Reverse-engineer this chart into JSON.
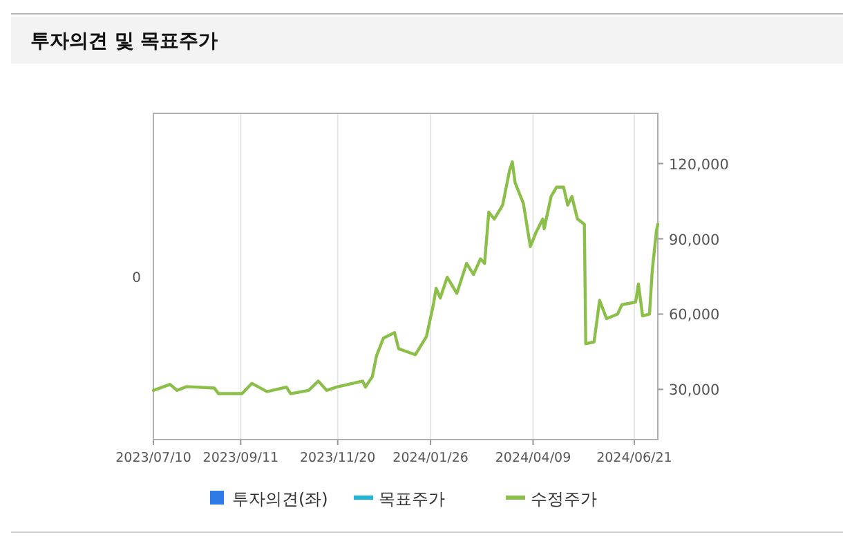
{
  "chart_data": {
    "type": "line",
    "title": "투자의견 및 목표주가",
    "xlim": [
      "2023-07-10",
      "2024-07-08"
    ],
    "xticks": [
      {
        "value": "2023-07-10",
        "label": "2023/07/10"
      },
      {
        "value": "2023-09-11",
        "label": "2023/09/11"
      },
      {
        "value": "2023-11-20",
        "label": "2023/11/20"
      },
      {
        "value": "2024-01-26",
        "label": "2024/01/26"
      },
      {
        "value": "2024-04-09",
        "label": "2024/04/09"
      },
      {
        "value": "2024-06-21",
        "label": "2024/06/21"
      }
    ],
    "annotations": [
      "0"
    ],
    "y2lim": [
      10000,
      140000
    ],
    "y2ticks": [
      {
        "value": 30000,
        "label": "30,000"
      },
      {
        "value": 60000,
        "label": "60,000"
      },
      {
        "value": 90000,
        "label": "90,000"
      },
      {
        "value": 120000,
        "label": "120,000"
      }
    ],
    "grid": "x",
    "legend": "bottom",
    "series": [
      {
        "name": "투자의견(좌)",
        "type": "bar",
        "color": "#2f7ae5"
      },
      {
        "name": "목표주가",
        "type": "line",
        "axis": "y2",
        "color": "#1fb6d6"
      },
      {
        "name": "수정주가",
        "axis": "y2",
        "color": "#8cbf4a",
        "x": [
          "2023-07-10",
          "2023-07-22",
          "2023-07-27",
          "2023-08-03",
          "2023-08-23",
          "2023-08-26",
          "2023-09-12",
          "2023-09-19",
          "2023-09-30",
          "2023-10-14",
          "2023-10-17",
          "2023-10-30",
          "2023-11-06",
          "2023-11-12",
          "2023-11-19",
          "2023-12-08",
          "2023-12-10",
          "2023-12-15",
          "2023-12-18",
          "2023-12-23",
          "2023-12-31",
          "2024-01-03",
          "2024-01-15",
          "2024-01-23",
          "2024-01-28",
          "2024-01-30",
          "2024-02-02",
          "2024-02-07",
          "2024-02-14",
          "2024-02-21",
          "2024-02-26",
          "2024-03-02",
          "2024-03-05",
          "2024-03-08",
          "2024-03-12",
          "2024-03-18",
          "2024-03-23",
          "2024-03-25",
          "2024-03-27",
          "2024-04-02",
          "2024-04-07",
          "2024-04-11",
          "2024-04-16",
          "2024-04-17",
          "2024-04-22",
          "2024-04-26",
          "2024-05-01",
          "2024-05-04",
          "2024-05-07",
          "2024-05-11",
          "2024-05-16",
          "2024-05-17",
          "2024-05-23",
          "2024-05-27",
          "2024-06-01",
          "2024-06-09",
          "2024-06-12",
          "2024-06-22",
          "2024-06-24",
          "2024-06-27",
          "2024-07-02",
          "2024-07-04",
          "2024-07-07",
          "2024-07-08"
        ],
        "values": [
          29600,
          32000,
          29600,
          31100,
          30500,
          28300,
          28300,
          32400,
          29100,
          30900,
          28300,
          29600,
          33300,
          29600,
          30900,
          33300,
          30900,
          35100,
          43400,
          50400,
          52600,
          46200,
          43800,
          51000,
          63700,
          70300,
          66400,
          74700,
          68300,
          80200,
          75800,
          82000,
          80200,
          100600,
          97900,
          103400,
          117200,
          120700,
          112400,
          104100,
          86900,
          92400,
          97900,
          94000,
          106900,
          110600,
          110600,
          103400,
          106900,
          97900,
          95800,
          48200,
          48900,
          65500,
          58200,
          60000,
          63700,
          64800,
          72000,
          59300,
          60000,
          77500,
          93100,
          95800
        ]
      }
    ]
  }
}
